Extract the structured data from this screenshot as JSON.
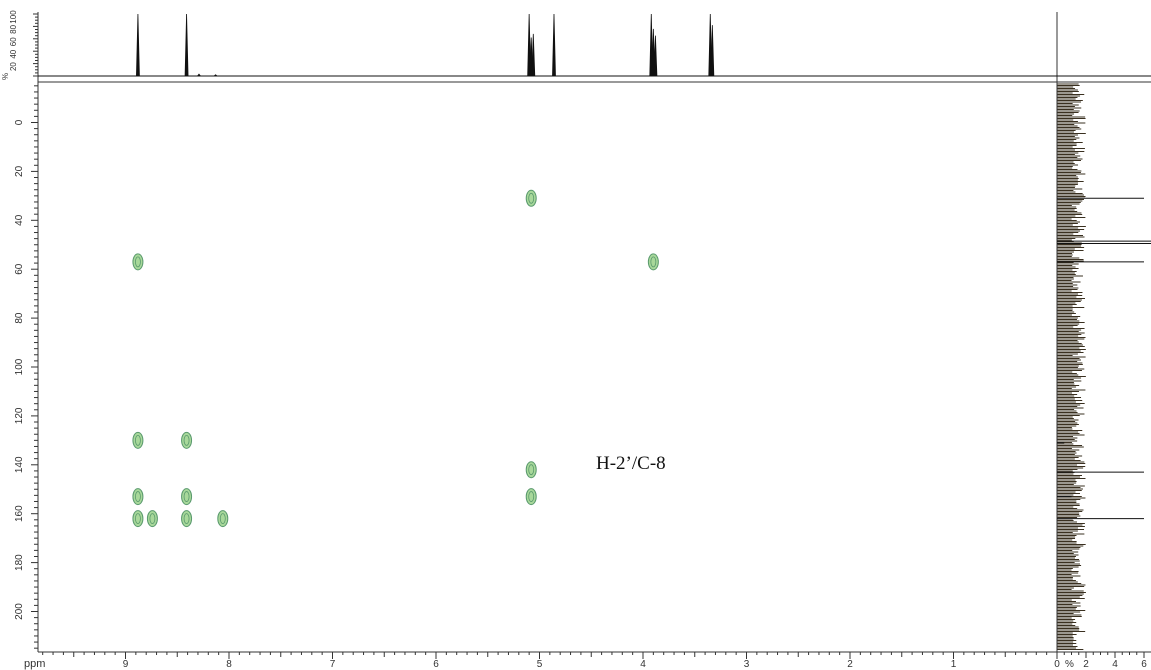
{
  "chart_data": {
    "type": "scatter",
    "title": "",
    "annotation": "H-2’/C-8",
    "x_axis": {
      "unit_label": "ppm",
      "reversed": true,
      "range": [
        10,
        0
      ],
      "tick_labels": [
        "9",
        "8",
        "7",
        "6",
        "5",
        "4",
        "3",
        "2",
        "1",
        "0"
      ]
    },
    "y_axis": {
      "reversed": true,
      "range": [
        -15,
        215
      ],
      "tick_labels": [
        "0",
        "20",
        "40",
        "60",
        "80",
        "100",
        "120",
        "140",
        "160",
        "180",
        "200"
      ]
    },
    "top_projection": {
      "axis_label": "%",
      "tick_labels": [
        "20",
        "40",
        "60",
        "80",
        "100"
      ],
      "peaks": [
        {
          "ppm": 8.88,
          "intensity": 100
        },
        {
          "ppm": 8.41,
          "intensity": 100
        },
        {
          "ppm": 8.29,
          "intensity": 3
        },
        {
          "ppm": 8.13,
          "intensity": 2
        },
        {
          "ppm": 5.1,
          "intensity": 100
        },
        {
          "ppm": 5.08,
          "intensity": 62
        },
        {
          "ppm": 5.06,
          "intensity": 68
        },
        {
          "ppm": 4.86,
          "intensity": 100
        },
        {
          "ppm": 3.92,
          "intensity": 100
        },
        {
          "ppm": 3.9,
          "intensity": 76
        },
        {
          "ppm": 3.88,
          "intensity": 65
        },
        {
          "ppm": 3.35,
          "intensity": 100
        },
        {
          "ppm": 3.33,
          "intensity": 82
        }
      ]
    },
    "side_projection": {
      "axis_label": "%",
      "tick_labels": [
        "2",
        "4",
        "6"
      ],
      "peaks": [
        {
          "ppm": 31,
          "intensity": 6
        },
        {
          "ppm": 48.5,
          "intensity": 7
        },
        {
          "ppm": 49.5,
          "intensity": 6.5
        },
        {
          "ppm": 57,
          "intensity": 6
        },
        {
          "ppm": 131,
          "intensity": 0.5
        },
        {
          "ppm": 143,
          "intensity": 6
        },
        {
          "ppm": 153,
          "intensity": 1
        },
        {
          "ppm": 162,
          "intensity": 6
        }
      ]
    },
    "cross_peaks": [
      {
        "x": 5.08,
        "y": 31
      },
      {
        "x": 3.9,
        "y": 57
      },
      {
        "x": 8.88,
        "y": 57
      },
      {
        "x": 8.88,
        "y": 130
      },
      {
        "x": 8.41,
        "y": 130
      },
      {
        "x": 5.08,
        "y": 142
      },
      {
        "x": 5.08,
        "y": 153
      },
      {
        "x": 8.88,
        "y": 153
      },
      {
        "x": 8.41,
        "y": 153
      },
      {
        "x": 8.88,
        "y": 162
      },
      {
        "x": 8.74,
        "y": 162
      },
      {
        "x": 8.41,
        "y": 162
      },
      {
        "x": 8.06,
        "y": 162
      }
    ],
    "colors": {
      "axis": "#333333",
      "peak_fill": "#a8d89a",
      "peak_stroke": "#5a9a6e",
      "spectrum": "#111111",
      "side_noise": "#3a3020"
    }
  }
}
